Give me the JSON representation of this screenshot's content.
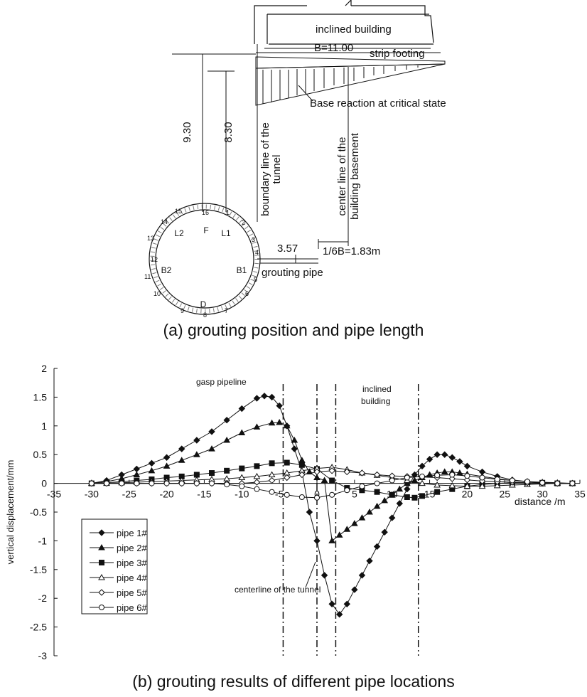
{
  "panel_a": {
    "caption": "(a) grouting position and pipe length",
    "building_label": "inclined building",
    "width_label": "B=11.00",
    "footing_label": "strip footing",
    "reaction_label": "Base reaction at critical state",
    "dim_left": "9.30",
    "dim_right": "8.30",
    "boundary_label_1": "boundary line of the",
    "boundary_label_2": "tunnel",
    "center_label_1": "center line of the",
    "center_label_2": "building basement",
    "dim_pipe": "3.57",
    "dim_sixth": "1/6B=1.83m",
    "pipe_label": "grouting pipe",
    "ring_labels": [
      "F",
      "L1",
      "L2",
      "B1",
      "B2",
      "D"
    ],
    "ring_numbers": [
      "1",
      "2",
      "3",
      "4",
      "5",
      "6",
      "7",
      "8",
      "9",
      "10",
      "11",
      "12",
      "13",
      "14",
      "15",
      "16"
    ]
  },
  "panel_b": {
    "caption": "(b) grouting results of different pipe locations",
    "annotations": {
      "gasp": "gasp pipeline",
      "inclined_1": "inclined",
      "inclined_2": "building",
      "centerline": "centerline of the tunnel"
    }
  },
  "chart_data": {
    "type": "line",
    "xlabel": "distance /m",
    "ylabel": "vertical displacement/mm",
    "xlim": [
      -35,
      35
    ],
    "ylim": [
      -3,
      2
    ],
    "xticks": [
      -35,
      -30,
      -25,
      -20,
      -15,
      -10,
      -5,
      0,
      5,
      10,
      15,
      20,
      25,
      30,
      35
    ],
    "yticks": [
      2,
      1.5,
      1,
      0.5,
      0,
      -0.5,
      -1,
      -1.5,
      -2,
      -2.5,
      -3
    ],
    "vlines": [
      -4.5,
      0,
      2.5,
      13.5
    ],
    "series": [
      {
        "name": "pipe 1#",
        "marker": "diamond-filled",
        "x": [
          -30,
          -28,
          -26,
          -24,
          -22,
          -20,
          -18,
          -16,
          -14,
          -12,
          -10,
          -8,
          -7,
          -6,
          -5,
          -4,
          -3,
          -2,
          -1,
          0,
          1,
          2,
          3,
          4,
          5,
          6,
          7,
          8,
          9,
          10,
          11,
          12,
          13,
          14,
          15,
          16,
          17,
          18,
          19,
          20,
          22,
          24,
          26,
          28,
          30,
          32,
          34
        ],
        "y": [
          0,
          0.05,
          0.15,
          0.25,
          0.35,
          0.45,
          0.6,
          0.75,
          0.9,
          1.1,
          1.3,
          1.48,
          1.52,
          1.5,
          1.35,
          1.0,
          0.6,
          0.2,
          -0.5,
          -1.0,
          -1.6,
          -2.1,
          -2.28,
          -2.1,
          -1.85,
          -1.6,
          -1.35,
          -1.1,
          -0.85,
          -0.6,
          -0.35,
          -0.1,
          0.15,
          0.3,
          0.42,
          0.5,
          0.5,
          0.45,
          0.38,
          0.3,
          0.2,
          0.12,
          0.06,
          0.03,
          0.01,
          0,
          0
        ]
      },
      {
        "name": "pipe 2#",
        "marker": "triangle-filled",
        "x": [
          -30,
          -28,
          -26,
          -24,
          -22,
          -20,
          -18,
          -16,
          -14,
          -12,
          -10,
          -8,
          -6,
          -5,
          -4,
          -3,
          -2,
          -1,
          0,
          1,
          2,
          3,
          4,
          5,
          6,
          7,
          8,
          9,
          10,
          11,
          12,
          13,
          14,
          15,
          16,
          17,
          18,
          19,
          20,
          22,
          24,
          26,
          28,
          30,
          32,
          34
        ],
        "y": [
          0,
          0.03,
          0.08,
          0.15,
          0.22,
          0.3,
          0.4,
          0.5,
          0.6,
          0.75,
          0.88,
          0.98,
          1.05,
          1.06,
          1.0,
          0.75,
          0.4,
          0.2,
          0.1,
          0.05,
          -1.0,
          -0.9,
          -0.8,
          -0.7,
          -0.6,
          -0.5,
          -0.4,
          -0.3,
          -0.2,
          -0.1,
          0.0,
          0.05,
          0.1,
          0.15,
          0.18,
          0.2,
          0.2,
          0.18,
          0.16,
          0.12,
          0.08,
          0.05,
          0.03,
          0.02,
          0.01,
          0
        ]
      },
      {
        "name": "pipe 3#",
        "marker": "square-filled",
        "x": [
          -30,
          -28,
          -26,
          -24,
          -22,
          -20,
          -18,
          -16,
          -14,
          -12,
          -10,
          -8,
          -6,
          -4,
          -2,
          0,
          2,
          4,
          6,
          8,
          10,
          12,
          13,
          14,
          16,
          18,
          20,
          22,
          24,
          26,
          28,
          30,
          32,
          34
        ],
        "y": [
          0,
          0.01,
          0.03,
          0.05,
          0.07,
          0.1,
          0.12,
          0.15,
          0.18,
          0.22,
          0.26,
          0.3,
          0.35,
          0.36,
          0.32,
          0.25,
          0.05,
          -0.08,
          -0.12,
          -0.15,
          -0.2,
          -0.24,
          -0.25,
          -0.22,
          -0.15,
          -0.1,
          -0.05,
          -0.02,
          0,
          0.01,
          0.01,
          0.01,
          0.0,
          0
        ]
      },
      {
        "name": "pipe 4#",
        "marker": "triangle-open",
        "x": [
          -30,
          -28,
          -26,
          -24,
          -22,
          -20,
          -18,
          -16,
          -14,
          -12,
          -10,
          -8,
          -6,
          -4,
          -2,
          0,
          2,
          4,
          6,
          8,
          10,
          12,
          14,
          16,
          18,
          20,
          22,
          24,
          26,
          28,
          30,
          32,
          34
        ],
        "y": [
          0,
          0,
          0.01,
          0.02,
          0.03,
          0.04,
          0.05,
          0.06,
          0.07,
          0.08,
          0.1,
          0.12,
          0.15,
          0.18,
          0.22,
          0.26,
          0.28,
          0.24,
          0.18,
          0.14,
          0.1,
          0.05,
          0.0,
          -0.03,
          -0.04,
          -0.05,
          -0.05,
          -0.04,
          -0.03,
          -0.02,
          -0.01,
          0,
          0
        ]
      },
      {
        "name": "pipe 5#",
        "marker": "diamond-open",
        "x": [
          -30,
          -28,
          -26,
          -24,
          -22,
          -20,
          -18,
          -16,
          -14,
          -12,
          -10,
          -8,
          -6,
          -4,
          -2,
          0,
          2,
          4,
          6,
          8,
          10,
          12,
          14,
          16,
          18,
          20,
          22,
          24,
          26,
          28,
          30,
          32,
          34
        ],
        "y": [
          0,
          0,
          0,
          0,
          0,
          0,
          0,
          0,
          0,
          0,
          0,
          0.02,
          0.05,
          0.1,
          0.15,
          0.2,
          0.22,
          0.2,
          0.18,
          0.15,
          0.13,
          0.12,
          0.11,
          0.1,
          0.08,
          0.06,
          0.04,
          0.03,
          0.02,
          0.01,
          0,
          0,
          0
        ]
      },
      {
        "name": "pipe 6#",
        "marker": "circle-open",
        "x": [
          -30,
          -28,
          -26,
          -24,
          -22,
          -20,
          -18,
          -16,
          -14,
          -12,
          -10,
          -8,
          -6,
          -4,
          -2,
          0,
          2,
          4,
          6,
          8,
          10,
          12,
          14,
          16,
          18,
          20,
          22,
          24,
          26,
          28,
          30,
          32,
          34
        ],
        "y": [
          0,
          0,
          0,
          0,
          0,
          0,
          0,
          0,
          0,
          -0.02,
          -0.05,
          -0.1,
          -0.15,
          -0.2,
          -0.24,
          -0.25,
          -0.2,
          -0.12,
          -0.05,
          0.0,
          0.05,
          0.1,
          0.12,
          0.14,
          0.15,
          0.13,
          0.1,
          0.07,
          0.05,
          0.03,
          0.01,
          0,
          0
        ]
      }
    ]
  }
}
